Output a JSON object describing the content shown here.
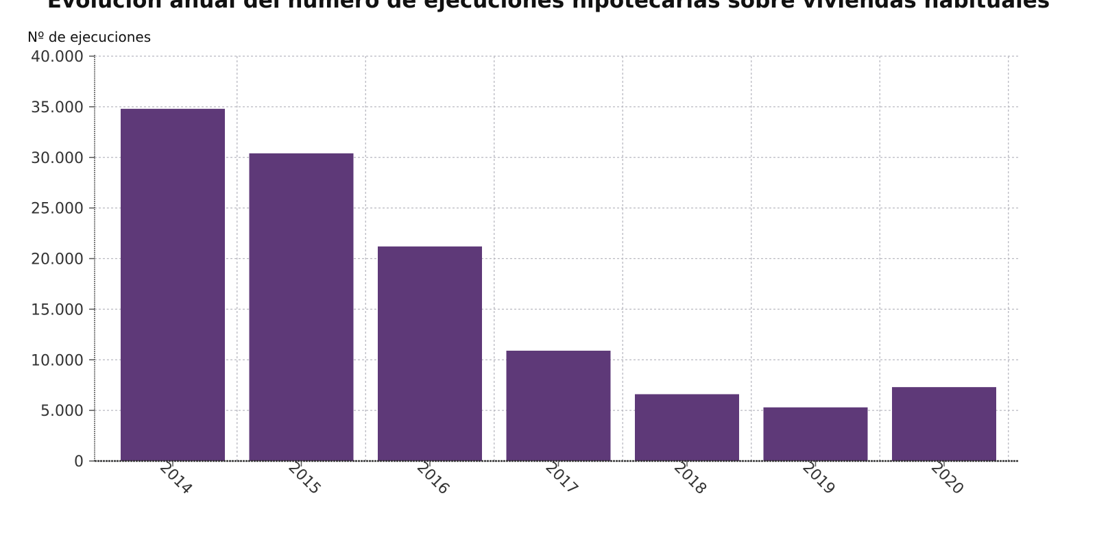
{
  "chart_data": {
    "type": "bar",
    "title": "Evolución anual del número de ejecuciones hipotecarias sobre viviendas habituales",
    "ylabel": "Nº de ejecuciones",
    "xlabel": "",
    "categories": [
      "2014",
      "2015",
      "2016",
      "2017",
      "2018",
      "2019",
      "2020"
    ],
    "values": [
      34800,
      30400,
      21200,
      10900,
      6600,
      5300,
      7300
    ],
    "ylim": [
      0,
      40000
    ],
    "yticks": [
      0,
      5000,
      10000,
      15000,
      20000,
      25000,
      30000,
      35000,
      40000
    ],
    "ytick_labels": [
      "0",
      "5.000",
      "10.000",
      "15.000",
      "20.000",
      "25.000",
      "30.000",
      "35.000",
      "40.000"
    ],
    "grid": true,
    "bar_color": "#5e3978"
  }
}
